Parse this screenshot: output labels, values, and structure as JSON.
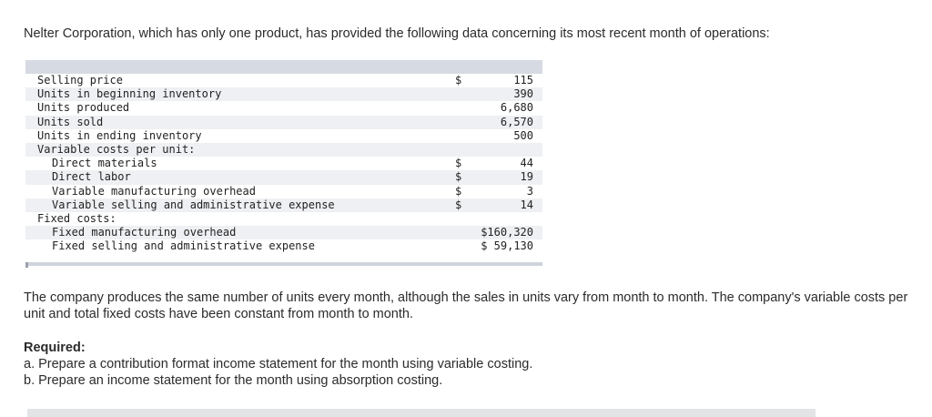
{
  "intro": "Nelter Corporation, which has only one product, has provided the following data concerning its most recent month of operations:",
  "table": {
    "rows": [
      {
        "label": "Selling price",
        "indent": false,
        "currency": "$",
        "value": "115"
      },
      {
        "label": "Units in beginning inventory",
        "indent": false,
        "currency": "",
        "value": "390"
      },
      {
        "label": "Units produced",
        "indent": false,
        "currency": "",
        "value": "6,680"
      },
      {
        "label": "Units sold",
        "indent": false,
        "currency": "",
        "value": "6,570"
      },
      {
        "label": "Units in ending inventory",
        "indent": false,
        "currency": "",
        "value": "500"
      },
      {
        "label": "Variable costs per unit:",
        "indent": false,
        "currency": "",
        "value": ""
      },
      {
        "label": "Direct materials",
        "indent": true,
        "currency": "$",
        "value": "44"
      },
      {
        "label": "Direct labor",
        "indent": true,
        "currency": "$",
        "value": "19"
      },
      {
        "label": "Variable manufacturing overhead",
        "indent": true,
        "currency": "$",
        "value": "3"
      },
      {
        "label": "Variable selling and administrative expense",
        "indent": true,
        "currency": "$",
        "value": "14"
      },
      {
        "label": "Fixed costs:",
        "indent": false,
        "currency": "",
        "value": ""
      },
      {
        "label": "Fixed manufacturing overhead",
        "indent": true,
        "currency": "",
        "value": "$160,320"
      },
      {
        "label": "Fixed selling and administrative expense",
        "indent": true,
        "currency": "",
        "value": "$ 59,130"
      }
    ]
  },
  "paragraph": "The company produces the same number of units every month, although the sales in units vary from month to month. The company's variable costs per unit and total fixed costs have been constant from month to month.",
  "required": {
    "title": "Required:",
    "items": [
      "a. Prepare a contribution format income statement for the month using variable costing.",
      "b. Prepare an income statement for the month using absorption costing."
    ]
  }
}
